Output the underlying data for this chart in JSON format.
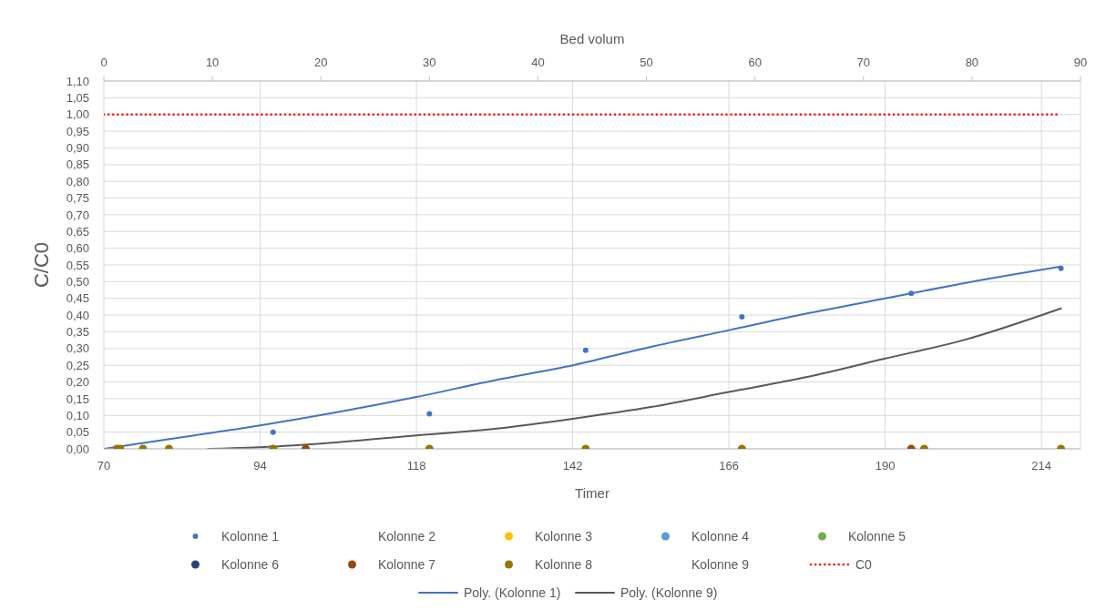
{
  "chart_data": {
    "type": "scatter",
    "xlabel": "Timer",
    "ylabel": "C/C0",
    "x2label": "Bed volum",
    "xlim": [
      70,
      220
    ],
    "xticks": [
      70,
      94,
      118,
      142,
      166,
      190,
      214
    ],
    "x2lim": [
      0,
      90
    ],
    "x2ticks": [
      0,
      10,
      20,
      30,
      40,
      50,
      60,
      70,
      80,
      90
    ],
    "ylim": [
      0,
      1.1
    ],
    "yticks": [
      {
        "value": 0,
        "label": "0,00"
      },
      {
        "value": 0.05,
        "label": "0,05"
      },
      {
        "value": 0.1,
        "label": "0,10"
      },
      {
        "value": 0.15,
        "label": "0,15"
      },
      {
        "value": 0.2,
        "label": "0,20"
      },
      {
        "value": 0.25,
        "label": "0,25"
      },
      {
        "value": 0.3,
        "label": "0,30"
      },
      {
        "value": 0.35,
        "label": "0,35"
      },
      {
        "value": 0.4,
        "label": "0,40"
      },
      {
        "value": 0.45,
        "label": "0,45"
      },
      {
        "value": 0.5,
        "label": "0,50"
      },
      {
        "value": 0.55,
        "label": "0,55"
      },
      {
        "value": 0.6,
        "label": "0,60"
      },
      {
        "value": 0.65,
        "label": "0,65"
      },
      {
        "value": 0.7,
        "label": "0,70"
      },
      {
        "value": 0.75,
        "label": "0,75"
      },
      {
        "value": 0.8,
        "label": "0,80"
      },
      {
        "value": 0.85,
        "label": "0,85"
      },
      {
        "value": 0.9,
        "label": "0,90"
      },
      {
        "value": 0.95,
        "label": "0,95"
      },
      {
        "value": 1,
        "label": "1,00"
      },
      {
        "value": 1.05,
        "label": "1,05"
      },
      {
        "value": 1.1,
        "label": "1,10"
      }
    ],
    "grid": true,
    "legend": "bottom",
    "marker": "circle",
    "series": [
      {
        "name": "Kolonne 1",
        "color": "#4472c4",
        "x": [
          96,
          120,
          144,
          168,
          194,
          217
        ],
        "values": [
          0.05,
          0.105,
          0.295,
          0.395,
          0.465,
          0.54
        ]
      },
      {
        "name": "Kolonne 2",
        "marker": "none"
      },
      {
        "name": "Kolonne 3",
        "color": "#ffc000"
      },
      {
        "name": "Kolonne 4",
        "color": "#5b9bd5"
      },
      {
        "name": "Kolonne 5",
        "color": "#70ad47"
      },
      {
        "name": "Kolonne 6",
        "color": "#264478"
      },
      {
        "name": "Kolonne 7",
        "color": "#9e480e",
        "x": [
          101,
          194
        ],
        "values": [
          0,
          0
        ]
      },
      {
        "name": "Kolonne 8",
        "color": "#997300",
        "x": [
          72,
          72.5,
          76,
          80,
          96,
          120,
          144,
          168,
          196,
          217
        ],
        "values": [
          0,
          0,
          0,
          0,
          0,
          0,
          0,
          0,
          0,
          0
        ]
      },
      {
        "name": "Kolonne 9",
        "marker": "none"
      },
      {
        "name": "C0",
        "type": "line",
        "color": "#ff0000",
        "line_style": "dotted",
        "marker": "none",
        "x": [
          70,
          216.5
        ],
        "values": [
          1,
          1
        ]
      },
      {
        "name": "Poly. (Kolonne 1)",
        "type": "line",
        "color": "#4472c4",
        "line_style": "solid",
        "marker": "none",
        "x": [
          70,
          82,
          94,
          106,
          118,
          130,
          142,
          154,
          166,
          178,
          190,
          202,
          217
        ],
        "values": [
          0,
          0.035,
          0.07,
          0.11,
          0.155,
          0.205,
          0.25,
          0.305,
          0.355,
          0.405,
          0.45,
          0.495,
          0.545
        ]
      },
      {
        "name": "Poly. (Kolonne 9)",
        "type": "line",
        "color": "#595959",
        "line_style": "solid",
        "marker": "none",
        "x": [
          86,
          94,
          106,
          118,
          130,
          142,
          154,
          166,
          178,
          190,
          202,
          217
        ],
        "values": [
          0,
          0.005,
          0.02,
          0.04,
          0.06,
          0.09,
          0.125,
          0.17,
          0.215,
          0.27,
          0.325,
          0.42
        ]
      }
    ]
  }
}
